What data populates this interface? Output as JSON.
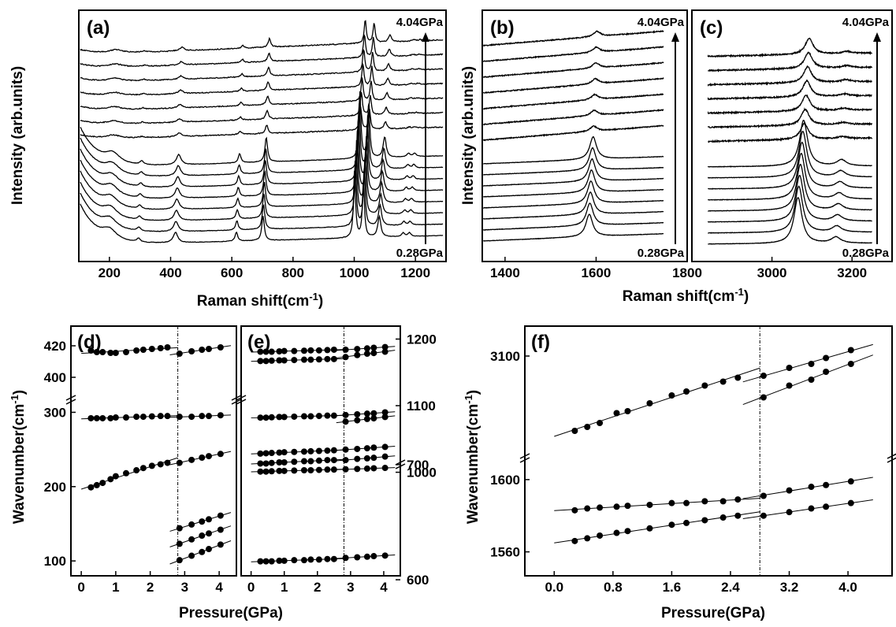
{
  "colors": {
    "line": "#000000",
    "background": "#ffffff"
  },
  "chart_data": [
    {
      "panel": "(a)",
      "type": "line",
      "xlabel": "Raman shift(cm-1)",
      "ylabel": "Intensity (arb.units)",
      "xlim": [
        100,
        1300
      ],
      "xticks": [
        "200",
        "400",
        "600",
        "800",
        "1000",
        "1200"
      ],
      "top_label": "4.04GPa",
      "bottom_label": "0.28GPa",
      "n_spectra": 15,
      "peaks": [
        {
          "pos": 200,
          "h": 0.9,
          "w": 28
        },
        {
          "pos": 295,
          "h": 0.35,
          "w": 7
        },
        {
          "pos": 416,
          "h": 1.0,
          "w": 9
        },
        {
          "pos": 615,
          "h": 0.9,
          "w": 5
        },
        {
          "pos": 702,
          "h": 2.4,
          "w": 5
        },
        {
          "pos": 1001,
          "h": 6.5,
          "w": 4
        },
        {
          "pos": 1030,
          "h": 5.5,
          "w": 4
        },
        {
          "pos": 1082,
          "h": 2.0,
          "w": 6
        },
        {
          "pos": 1160,
          "h": 0.35,
          "w": 6
        },
        {
          "pos": 1180,
          "h": 0.35,
          "w": 6
        }
      ]
    },
    {
      "panel": "(b)",
      "type": "line",
      "xlabel": "Raman shift(cm-1)",
      "ylabel": "Intensity (arb.units)",
      "xlim": [
        1350,
        1800
      ],
      "xticks": [
        "1400",
        "1600",
        "1800"
      ],
      "top_label": "4.04GPa",
      "bottom_label": "0.28GPa",
      "n_spectra": 15,
      "peaks": [
        {
          "pos": 1585,
          "h": 2.2,
          "w": 9
        }
      ]
    },
    {
      "panel": "(c)",
      "type": "line",
      "xlabel": "Raman shift(cm-1)",
      "xlim": [
        2800,
        3300
      ],
      "xticks": [
        "3000",
        "3200"
      ],
      "top_label": "4.04GPa",
      "bottom_label": "0.28GPa",
      "n_spectra": 15,
      "peaks": [
        {
          "pos": 3065,
          "h": 4.5,
          "w": 12
        },
        {
          "pos": 3160,
          "h": 0.6,
          "w": 14
        }
      ]
    },
    {
      "panel": "(d)",
      "type": "scatter",
      "xlabel": "Pressure(GPa)",
      "ylabel": "Wavenumber(cm-1)",
      "xlim": [
        -0.3,
        4.5
      ],
      "xticks": [
        "0",
        "1",
        "2",
        "3",
        "4"
      ],
      "yticks": [
        "100",
        "200",
        "300",
        "400",
        "420"
      ],
      "transition_pressure": 2.8,
      "series": [
        {
          "segments": [
            {
              "x": [
                0.28,
                0.45,
                0.62,
                0.85,
                1.0,
                1.3,
                1.6,
                1.8,
                2.05,
                2.3,
                2.5
              ],
              "y": [
                417,
                416,
                416,
                415.5,
                415.5,
                416,
                417,
                417.5,
                418,
                418.5,
                419
              ]
            },
            {
              "x": [
                2.85,
                3.2,
                3.5,
                3.7,
                4.04
              ],
              "y": [
                415,
                416.5,
                417.5,
                418,
                419
              ]
            }
          ]
        },
        {
          "segments": [
            {
              "x": [
                0.28,
                0.45,
                0.62,
                0.85,
                1.0,
                1.3,
                1.6,
                1.8,
                2.05,
                2.3,
                2.5
              ],
              "y": [
                292,
                292,
                292,
                292,
                293,
                293,
                294,
                294,
                294.5,
                295,
                295
              ]
            },
            {
              "x": [
                2.85,
                3.2,
                3.5,
                3.7,
                4.04
              ],
              "y": [
                294,
                294,
                295,
                295,
                296
              ]
            }
          ]
        },
        {
          "segments": [
            {
              "x": [
                0.28,
                0.45,
                0.62,
                0.85,
                1.0,
                1.3,
                1.6,
                1.8,
                2.05,
                2.3,
                2.5
              ],
              "y": [
                199,
                202,
                205,
                210,
                214,
                218,
                222,
                225,
                228,
                230,
                232
              ]
            },
            {
              "x": [
                2.85,
                3.2,
                3.5,
                3.7,
                4.04
              ],
              "y": [
                232,
                236,
                239,
                241,
                244
              ]
            }
          ]
        },
        {
          "segments": [
            {
              "x": [
                2.85,
                3.2,
                3.5,
                3.7,
                4.04
              ],
              "y": [
                144,
                149,
                153,
                156,
                161
              ]
            }
          ]
        },
        {
          "segments": [
            {
              "x": [
                2.85,
                3.2,
                3.5,
                3.7,
                4.04
              ],
              "y": [
                123,
                129,
                134,
                137,
                142
              ]
            }
          ]
        },
        {
          "segments": [
            {
              "x": [
                2.85,
                3.2,
                3.5,
                3.7,
                4.04
              ],
              "y": [
                101,
                107,
                112,
                116,
                122
              ]
            }
          ]
        }
      ]
    },
    {
      "panel": "(e)",
      "type": "scatter",
      "xlabel": "Pressure(GPa)",
      "xlim": [
        -0.3,
        4.5
      ],
      "xticks": [
        "0",
        "1",
        "2",
        "3",
        "4"
      ],
      "yticks": [
        "600",
        "700",
        "1000",
        "1100",
        "1200"
      ],
      "transition_pressure": 2.8,
      "series": [
        {
          "segments": [
            {
              "x": [
                0.28,
                0.45,
                0.62,
                0.85,
                1.0,
                1.3,
                1.6,
                1.8,
                2.05,
                2.3,
                2.5
              ],
              "y": [
                1181,
                1181,
                1181,
                1181.5,
                1182,
                1182,
                1182.5,
                1183,
                1183,
                1183.5,
                1184
              ]
            },
            {
              "x": [
                2.85,
                3.2,
                3.5,
                3.7,
                4.04
              ],
              "y": [
                1184,
                1185,
                1186,
                1187,
                1188
              ]
            }
          ]
        },
        {
          "segments": [
            {
              "x": [
                0.28,
                0.45,
                0.62,
                0.85,
                1.0,
                1.3,
                1.6,
                1.8,
                2.05,
                2.3,
                2.5
              ],
              "y": [
                1167,
                1167,
                1167.5,
                1168,
                1168,
                1168.5,
                1169,
                1169,
                1169.5,
                1170,
                1170
              ]
            },
            {
              "x": [
                2.85,
                3.2,
                3.5,
                3.7,
                4.04
              ],
              "y": [
                1173,
                1176,
                1178,
                1179,
                1181
              ]
            }
          ]
        },
        {
          "segments": [
            {
              "x": [
                0.28,
                0.45,
                0.62,
                0.85,
                1.0,
                1.3,
                1.6,
                1.8,
                2.05,
                2.3,
                2.5
              ],
              "y": [
                1082,
                1082,
                1082.5,
                1083,
                1083,
                1083.5,
                1084,
                1084,
                1084.5,
                1085,
                1085
              ]
            },
            {
              "x": [
                2.85,
                3.2,
                3.5,
                3.7,
                4.04
              ],
              "y": [
                1086,
                1087,
                1088,
                1088.5,
                1090
              ]
            }
          ]
        },
        {
          "segments": [
            {
              "x": [
                2.85,
                3.2,
                3.5,
                3.7,
                4.04
              ],
              "y": [
                1076,
                1078,
                1080,
                1081,
                1083
              ]
            }
          ]
        },
        {
          "segments": [
            {
              "x": [
                0.28,
                0.45,
                0.62,
                0.85,
                1.0,
                1.3,
                1.6,
                1.8,
                2.05,
                2.3,
                2.5
              ],
              "y": [
                1028,
                1028.5,
                1029,
                1029.5,
                1030,
                1030.5,
                1031,
                1031.5,
                1032,
                1032.5,
                1033
              ]
            },
            {
              "x": [
                2.85,
                3.2,
                3.5,
                3.7,
                4.04
              ],
              "y": [
                1034,
                1035,
                1036,
                1037,
                1038
              ]
            }
          ]
        },
        {
          "segments": [
            {
              "x": [
                0.28,
                0.45,
                0.62,
                0.85,
                1.0,
                1.3,
                1.6,
                1.8,
                2.05,
                2.3,
                2.5
              ],
              "y": [
                1001,
                1001,
                1001.5,
                1002,
                1002,
                1002.5,
                1003,
                1003,
                1003.5,
                1004,
                1004
              ]
            },
            {
              "x": [
                2.85,
                3.2,
                3.5,
                3.7,
                4.04
              ],
              "y": [
                1004.5,
                1005,
                1005.5,
                1006,
                1006.5
              ]
            }
          ]
        },
        {
          "segments": [
            {
              "x": [
                0.28,
                0.45,
                0.62,
                0.85,
                1.0,
                1.3,
                1.6,
                1.8,
                2.05,
                2.3,
                2.5
              ],
              "y": [
                701,
                701,
                701.5,
                702,
                702,
                702.5,
                703,
                703,
                703.5,
                704,
                704
              ]
            },
            {
              "x": [
                2.85,
                3.2,
                3.5,
                3.7,
                4.04
              ],
              "y": [
                704,
                705,
                705.5,
                706,
                707
              ]
            }
          ]
        },
        {
          "segments": [
            {
              "x": [
                0.28,
                0.45,
                0.62,
                0.85,
                1.0,
                1.3,
                1.6,
                1.8,
                2.05,
                2.3,
                2.5
              ],
              "y": [
                616,
                616,
                616,
                616.5,
                616.5,
                617,
                617,
                617.5,
                617.5,
                618,
                618
              ]
            },
            {
              "x": [
                2.85,
                3.2,
                3.5,
                3.7,
                4.04
              ],
              "y": [
                619,
                619.5,
                620,
                620.5,
                621
              ]
            }
          ]
        }
      ]
    },
    {
      "panel": "(f)",
      "type": "scatter",
      "xlabel": "Pressure(GPa)",
      "ylabel": "Wavenumber(cm-1)",
      "xlim": [
        -0.4,
        4.6
      ],
      "xticks": [
        "0.0",
        "0.8",
        "1.6",
        "2.4",
        "3.2",
        "4.0"
      ],
      "yticks": [
        "1560",
        "1600",
        "3100"
      ],
      "transition_pressure": 2.8,
      "series": [
        {
          "segments": [
            {
              "x": [
                0.28,
                0.45,
                0.62,
                0.85,
                1.0,
                1.3,
                1.6,
                1.8,
                2.05,
                2.3,
                2.5
              ],
              "y": [
                3062,
                3064,
                3066,
                3071,
                3072,
                3076,
                3080,
                3082,
                3085,
                3087,
                3089
              ]
            },
            {
              "x": [
                2.85,
                3.2,
                3.5,
                3.7,
                4.04
              ],
              "y": [
                3090,
                3094,
                3096,
                3099,
                3103
              ]
            }
          ]
        },
        {
          "segments": [
            {
              "x": [
                2.85,
                3.2,
                3.5,
                3.7,
                4.04
              ],
              "y": [
                3079,
                3085,
                3088,
                3092,
                3096
              ]
            }
          ]
        },
        {
          "segments": [
            {
              "x": [
                0.28,
                0.45,
                0.62,
                0.85,
                1.0,
                1.3,
                1.6,
                1.8,
                2.05,
                2.3,
                2.5
              ],
              "y": [
                1583,
                1584,
                1584.5,
                1585,
                1585.5,
                1586,
                1587,
                1587,
                1588,
                1588,
                1589
              ]
            },
            {
              "x": [
                2.85,
                3.2,
                3.5,
                3.7,
                4.04
              ],
              "y": [
                1591,
                1594,
                1596,
                1597,
                1599
              ]
            }
          ]
        },
        {
          "segments": [
            {
              "x": [
                0.28,
                0.45,
                0.62,
                0.85,
                1.0,
                1.3,
                1.6,
                1.8,
                2.05,
                2.3,
                2.5
              ],
              "y": [
                1566,
                1567.5,
                1569,
                1570.5,
                1571.5,
                1573,
                1575,
                1576,
                1577.5,
                1579,
                1580
              ]
            },
            {
              "x": [
                2.85,
                3.2,
                3.5,
                3.7,
                4.04
              ],
              "y": [
                1580,
                1582,
                1584,
                1585,
                1587
              ]
            }
          ]
        }
      ]
    }
  ]
}
